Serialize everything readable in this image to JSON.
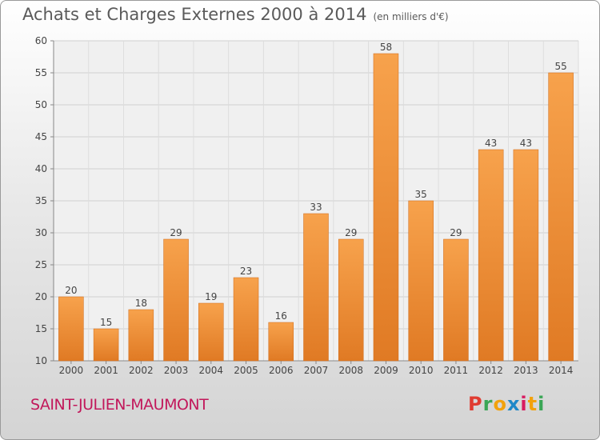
{
  "header": {
    "title": "Achats et Charges Externes 2000 à 2014",
    "unit": "(en milliers d'€)"
  },
  "footer": {
    "commune": "SAINT-JULIEN-MAUMONT",
    "brand": "Proxiti",
    "brand_colors": [
      "#e03c31",
      "#3aa655",
      "#f2a20c",
      "#1e88c8",
      "#d81b60",
      "#f2a20c",
      "#3aa655"
    ]
  },
  "chart_data": {
    "type": "bar",
    "title": "Achats et Charges Externes 2000 à 2014",
    "subtitle": "(en milliers d'€)",
    "categories": [
      "2000",
      "2001",
      "2002",
      "2003",
      "2004",
      "2005",
      "2006",
      "2007",
      "2008",
      "2009",
      "2010",
      "2011",
      "2012",
      "2013",
      "2014"
    ],
    "values": [
      20,
      15,
      18,
      29,
      19,
      23,
      16,
      33,
      29,
      58,
      35,
      29,
      43,
      43,
      55
    ],
    "ylim": [
      10,
      60
    ],
    "yticks": [
      10,
      15,
      20,
      25,
      30,
      35,
      40,
      45,
      50,
      55,
      60
    ],
    "grid": true,
    "bar_color_light": "#f7a24c",
    "bar_color_dark": "#e07a24"
  }
}
